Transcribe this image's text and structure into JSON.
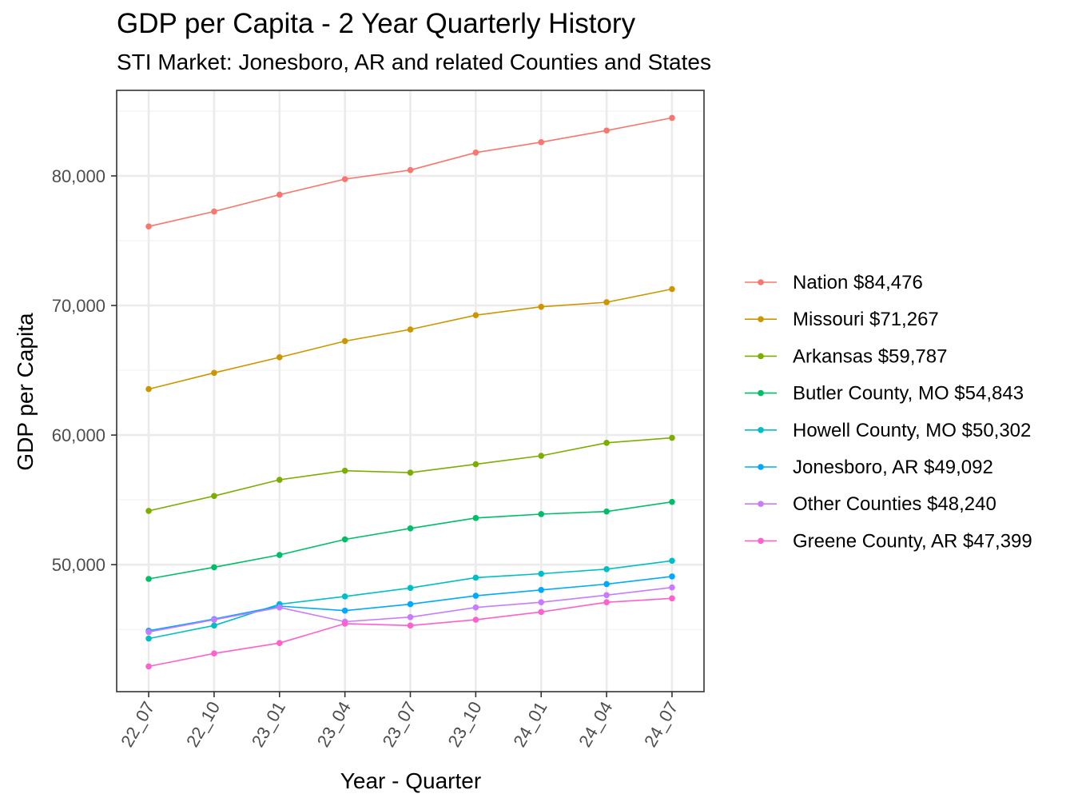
{
  "chart_data": {
    "type": "line",
    "title": "GDP per Capita - 2 Year Quarterly History",
    "subtitle": "STI Market: Jonesboro, AR and related Counties and States",
    "xlabel": "Year - Quarter",
    "ylabel": "GDP per Capita",
    "x": [
      "22_07",
      "22_10",
      "23_01",
      "23_04",
      "23_07",
      "23_10",
      "24_01",
      "24_04",
      "24_07"
    ],
    "ylim": [
      40200,
      86600
    ],
    "yticks": [
      50000,
      60000,
      70000,
      80000
    ],
    "ytick_labels": [
      "50,000",
      "60,000",
      "70,000",
      "80,000"
    ],
    "grid": true,
    "legend_position": "right",
    "series": [
      {
        "name": "Nation $84,476",
        "color": "#F8766D",
        "values": [
          76100,
          77250,
          78550,
          79750,
          80450,
          81800,
          82600,
          83500,
          84476
        ]
      },
      {
        "name": "Missouri $71,267",
        "color": "#CD9600",
        "values": [
          63550,
          64800,
          66000,
          67250,
          68150,
          69250,
          69900,
          70250,
          71267
        ]
      },
      {
        "name": "Arkansas $59,787",
        "color": "#7CAE00",
        "values": [
          54150,
          55300,
          56550,
          57250,
          57100,
          57750,
          58400,
          59400,
          59787
        ]
      },
      {
        "name": "Butler County, MO $54,843",
        "color": "#00BE67",
        "values": [
          48900,
          49800,
          50750,
          51950,
          52800,
          53600,
          53900,
          54100,
          54843
        ]
      },
      {
        "name": "Howell County, MO $50,302",
        "color": "#00BFC4",
        "values": [
          44300,
          45300,
          46950,
          47550,
          48200,
          49000,
          49300,
          49650,
          50302
        ]
      },
      {
        "name": "Jonesboro, AR $49,092",
        "color": "#00A9FF",
        "values": [
          44900,
          45800,
          46800,
          46450,
          46950,
          47600,
          48050,
          48500,
          49092
        ]
      },
      {
        "name": "Other Counties $48,240",
        "color": "#C77CFF",
        "values": [
          44800,
          45750,
          46700,
          45600,
          45950,
          46700,
          47100,
          47650,
          48240
        ]
      },
      {
        "name": "Greene County, AR $47,399",
        "color": "#FF61CC",
        "values": [
          42150,
          43150,
          43950,
          45450,
          45300,
          45750,
          46350,
          47100,
          47399
        ]
      }
    ]
  }
}
